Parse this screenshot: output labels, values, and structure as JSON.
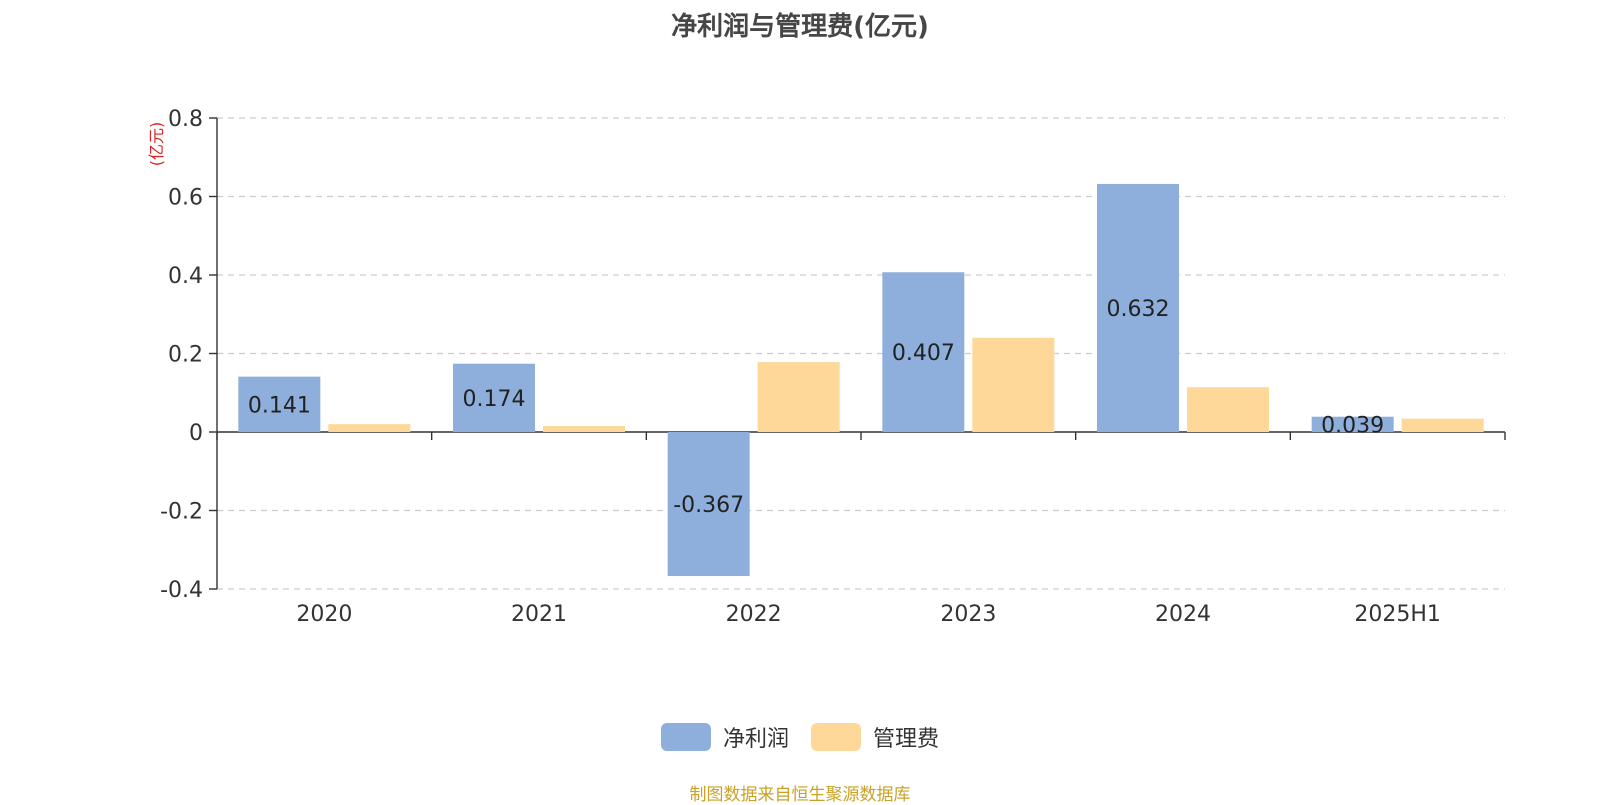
{
  "chart_data": {
    "type": "bar",
    "title": "净利润与管理费(亿元)",
    "ylabel": "(亿元)",
    "xlabel": "",
    "categories": [
      "2020",
      "2021",
      "2022",
      "2023",
      "2024",
      "2025H1"
    ],
    "ylim": [
      -0.4,
      0.8
    ],
    "yticks": [
      -0.4,
      -0.2,
      0,
      0.2,
      0.4,
      0.6,
      0.8
    ],
    "ytick_labels": [
      "-0.4",
      "-0.2",
      "0",
      "0.2",
      "0.4",
      "0.6",
      "0.8"
    ],
    "grid": true,
    "legend_position": "bottom-center",
    "series": [
      {
        "name": "净利润",
        "color": "#8eaedb",
        "values": [
          0.141,
          0.174,
          -0.367,
          0.407,
          0.632,
          0.039
        ],
        "labels": [
          "0.141",
          "0.174",
          "-0.367",
          "0.407",
          "0.632",
          "0.039"
        ]
      },
      {
        "name": "管理费",
        "color": "#fdd899",
        "values": [
          0.02,
          0.015,
          0.178,
          0.24,
          0.114,
          0.034
        ]
      }
    ]
  },
  "footer": {
    "source": "制图数据来自恒生聚源数据库"
  }
}
